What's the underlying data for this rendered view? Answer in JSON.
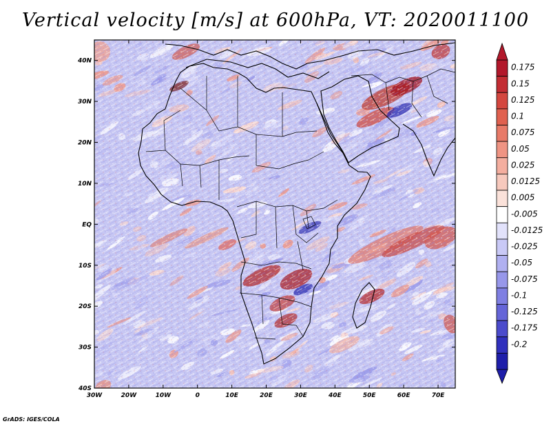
{
  "title": "Vertical velocity [m/s] at 600hPa, VT: 2020011100",
  "credit": "GrADS: IGES/COLA",
  "map": {
    "lat_labels": [
      "40N",
      "30N",
      "20N",
      "10N",
      "EQ",
      "10S",
      "20S",
      "30S",
      "40S"
    ],
    "lon_labels": [
      "30W",
      "20W",
      "10W",
      "0",
      "10E",
      "20E",
      "30E",
      "40E",
      "50E",
      "60E",
      "70E"
    ],
    "lon_range": [
      -30,
      75
    ],
    "lat_range": [
      -40,
      45
    ]
  },
  "colorbar": {
    "labels": [
      "0.175",
      "0.15",
      "0.125",
      "0.1",
      "0.075",
      "0.05",
      "0.025",
      "0.0125",
      "0.005",
      "-0.005",
      "-0.0125",
      "-0.025",
      "-0.05",
      "-0.075",
      "-0.1",
      "-0.125",
      "-0.175",
      "-0.2"
    ],
    "colors": [
      "#b2182b",
      "#c32d33",
      "#d4473f",
      "#e0614f",
      "#e87a68",
      "#ef9483",
      "#f4ae9f",
      "#f7c9bd",
      "#fbe2da",
      "#ffffff",
      "#e2e2fb",
      "#c9c9f6",
      "#b0b0f1",
      "#9797ea",
      "#7f7fe2",
      "#6565d8",
      "#4b4bcc",
      "#3030bd",
      "#1e1eaa"
    ]
  },
  "chart_data": {
    "type": "heatmap",
    "title": "Vertical velocity [m/s] at 600hPa, VT: 2020011100",
    "variable": "Vertical velocity",
    "units": "m/s",
    "level": "600hPa",
    "valid_time": "2020011100",
    "x_range": [
      -30,
      75
    ],
    "y_range": [
      -40,
      45
    ],
    "color_levels": [
      0.175,
      0.15,
      0.125,
      0.1,
      0.075,
      0.05,
      0.025,
      0.0125,
      0.005,
      -0.005,
      -0.0125,
      -0.025,
      -0.05,
      -0.075,
      -0.1,
      -0.125,
      -0.175,
      -0.2
    ]
  }
}
